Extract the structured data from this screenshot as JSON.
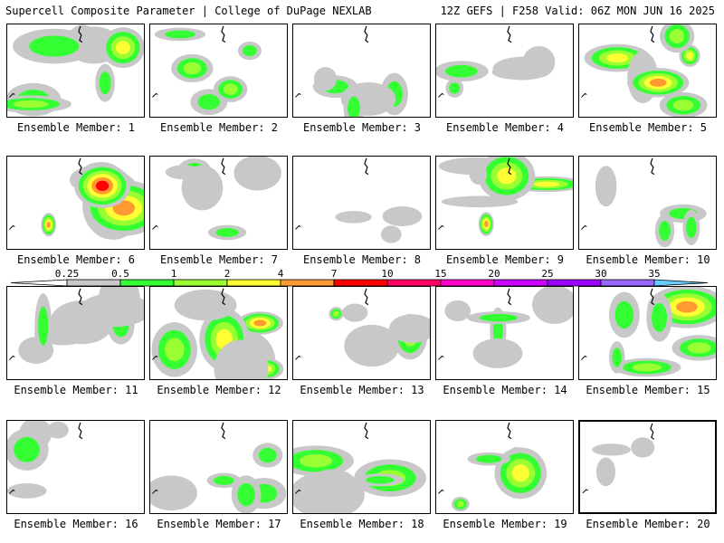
{
  "header": {
    "title_left": "Supercell Composite Parameter | College of DuPage NEXLAB",
    "title_right": "12Z GEFS | F258 Valid: 06Z MON JUN 16 2025"
  },
  "colorbar": {
    "labels": [
      "0.25",
      "0.5",
      "1",
      "2",
      "4",
      "7",
      "10",
      "15",
      "20",
      "25",
      "30",
      "35"
    ],
    "colors": [
      "#c8c8c8",
      "#33ff33",
      "#99ff33",
      "#ffff33",
      "#ff9933",
      "#ff0000",
      "#ff0066",
      "#ff00cc",
      "#cc00ff",
      "#9900ff",
      "#9966ff",
      "#66ccff"
    ]
  },
  "members": [
    {
      "label": "Ensemble Member: 1",
      "intensity": 0.9
    },
    {
      "label": "Ensemble Member: 2",
      "intensity": 0.5
    },
    {
      "label": "Ensemble Member: 3",
      "intensity": 0.4
    },
    {
      "label": "Ensemble Member: 4",
      "intensity": 0.4
    },
    {
      "label": "Ensemble Member: 5",
      "intensity": 0.8
    },
    {
      "label": "Ensemble Member: 6",
      "intensity": 1.0
    },
    {
      "label": "Ensemble Member: 7",
      "intensity": 0.4
    },
    {
      "label": "Ensemble Member: 8",
      "intensity": 0.1
    },
    {
      "label": "Ensemble Member: 9",
      "intensity": 0.8
    },
    {
      "label": "Ensemble Member: 10",
      "intensity": 0.3
    },
    {
      "label": "Ensemble Member: 11",
      "intensity": 0.9
    },
    {
      "label": "Ensemble Member: 12",
      "intensity": 1.0
    },
    {
      "label": "Ensemble Member: 13",
      "intensity": 0.5
    },
    {
      "label": "Ensemble Member: 14",
      "intensity": 0.7
    },
    {
      "label": "Ensemble Member: 15",
      "intensity": 0.8
    },
    {
      "label": "Ensemble Member: 16",
      "intensity": 0.3
    },
    {
      "label": "Ensemble Member: 17",
      "intensity": 0.4
    },
    {
      "label": "Ensemble Member: 18",
      "intensity": 0.8
    },
    {
      "label": "Ensemble Member: 19",
      "intensity": 0.6
    },
    {
      "label": "Ensemble Member: 20",
      "intensity": 0.1
    }
  ]
}
